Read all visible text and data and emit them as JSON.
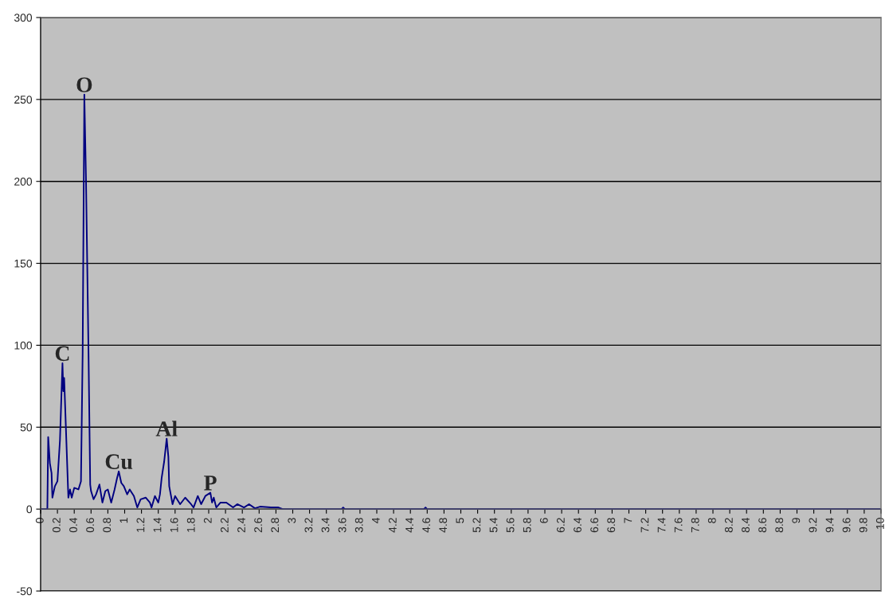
{
  "chart_data": {
    "type": "line",
    "x": [
      0,
      0.08,
      0.09,
      0.11,
      0.13,
      0.14,
      0.17,
      0.2,
      0.23,
      0.26,
      0.27,
      0.28,
      0.33,
      0.35,
      0.37,
      0.4,
      0.45,
      0.48,
      0.5,
      0.52,
      0.54,
      0.57,
      0.59,
      0.6,
      0.63,
      0.66,
      0.7,
      0.735,
      0.77,
      0.8,
      0.84,
      0.88,
      0.91,
      0.93,
      0.96,
      0.99,
      1.03,
      1.06,
      1.11,
      1.15,
      1.19,
      1.25,
      1.3,
      1.32,
      1.36,
      1.4,
      1.42,
      1.44,
      1.47,
      1.5,
      1.52,
      1.53,
      1.57,
      1.6,
      1.66,
      1.72,
      1.79,
      1.82,
      1.87,
      1.91,
      1.96,
      2.02,
      2.04,
      2.06,
      2.09,
      2.14,
      2.21,
      2.29,
      2.34,
      2.42,
      2.48,
      2.55,
      2.61,
      2.74,
      2.83,
      2.88,
      3.58,
      3.6,
      3.62,
      4.56,
      4.58,
      4.6,
      10
    ],
    "series": [
      {
        "color": "#000080",
        "values": [
          0,
          0,
          44,
          28,
          22,
          7,
          14,
          17,
          42,
          89,
          72,
          80,
          7,
          12,
          7,
          13,
          12,
          17,
          95,
          253,
          201,
          95,
          15,
          11,
          6,
          9,
          15,
          4,
          11,
          12,
          4,
          12,
          19,
          23,
          16,
          14,
          9,
          12,
          8,
          1,
          6,
          7,
          4,
          1,
          8,
          4,
          9,
          19,
          29,
          43,
          32,
          14,
          3,
          8,
          3,
          7,
          3,
          1,
          8,
          3,
          8,
          10,
          4,
          7,
          1,
          4,
          4,
          1,
          3,
          1,
          3,
          0.5,
          1.5,
          1,
          1,
          0,
          0,
          1,
          0,
          0,
          1,
          0,
          0
        ]
      }
    ],
    "xlim": [
      0,
      10
    ],
    "xticks": [
      0,
      0.2,
      0.4,
      0.6,
      0.8,
      1,
      1.2,
      1.4,
      1.6,
      1.8,
      2,
      2.2,
      2.4,
      2.6,
      2.8,
      3,
      3.2,
      3.4,
      3.6,
      3.8,
      4,
      4.2,
      4.4,
      4.6,
      4.8,
      5,
      5.2,
      5.4,
      5.6,
      5.8,
      6,
      6.2,
      6.4,
      6.6,
      6.8,
      7,
      7.2,
      7.4,
      7.6,
      7.8,
      8,
      8.2,
      8.4,
      8.6,
      8.8,
      9,
      9.2,
      9.4,
      9.6,
      9.8,
      10
    ],
    "ylim": [
      -50,
      300
    ],
    "yticks": [
      -50,
      0,
      50,
      100,
      150,
      200,
      250,
      300
    ],
    "grid": "y",
    "legend": false,
    "marker": "none",
    "line_style": "solid",
    "annotations": [
      {
        "text": "C",
        "x": 0.26,
        "y": 89
      },
      {
        "text": "O",
        "x": 0.52,
        "y": 253
      },
      {
        "text": "Cu",
        "x": 0.93,
        "y": 23
      },
      {
        "text": "Al",
        "x": 1.5,
        "y": 43
      },
      {
        "text": "P",
        "x": 2.02,
        "y": 10
      }
    ]
  }
}
